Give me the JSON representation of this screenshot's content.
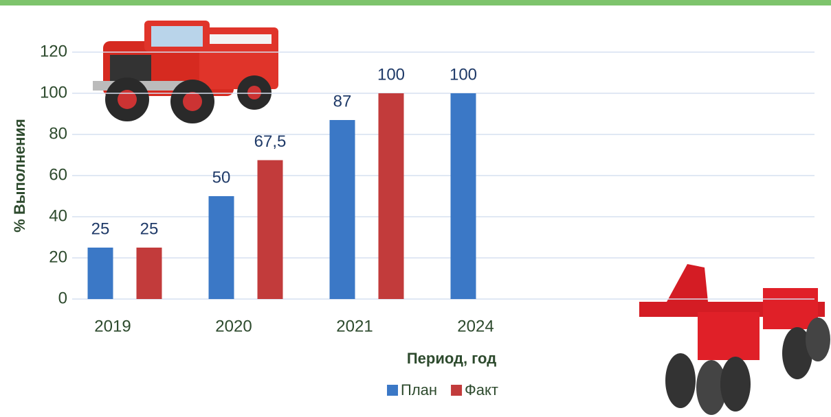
{
  "chart_data": {
    "type": "bar",
    "categories": [
      "2019",
      "2020",
      "2021",
      "2024",
      null,
      null
    ],
    "series": [
      {
        "name": "План",
        "color": "#3b78c6",
        "values": [
          25,
          50,
          87,
          100,
          null,
          null
        ],
        "value_labels": [
          "25",
          "50",
          "87",
          "100",
          null,
          null
        ]
      },
      {
        "name": "Факт",
        "color": "#c23b3b",
        "values": [
          25,
          67.5,
          100,
          null,
          null,
          null
        ],
        "value_labels": [
          "25",
          "67,5",
          "100",
          null,
          null,
          null
        ]
      }
    ],
    "x_label": "Период, год",
    "y_label": "% Выполнения",
    "ylim": [
      0,
      120
    ],
    "yticks": [
      0,
      20,
      40,
      60,
      80,
      100,
      120
    ],
    "grid": true,
    "legend": "bottom"
  }
}
